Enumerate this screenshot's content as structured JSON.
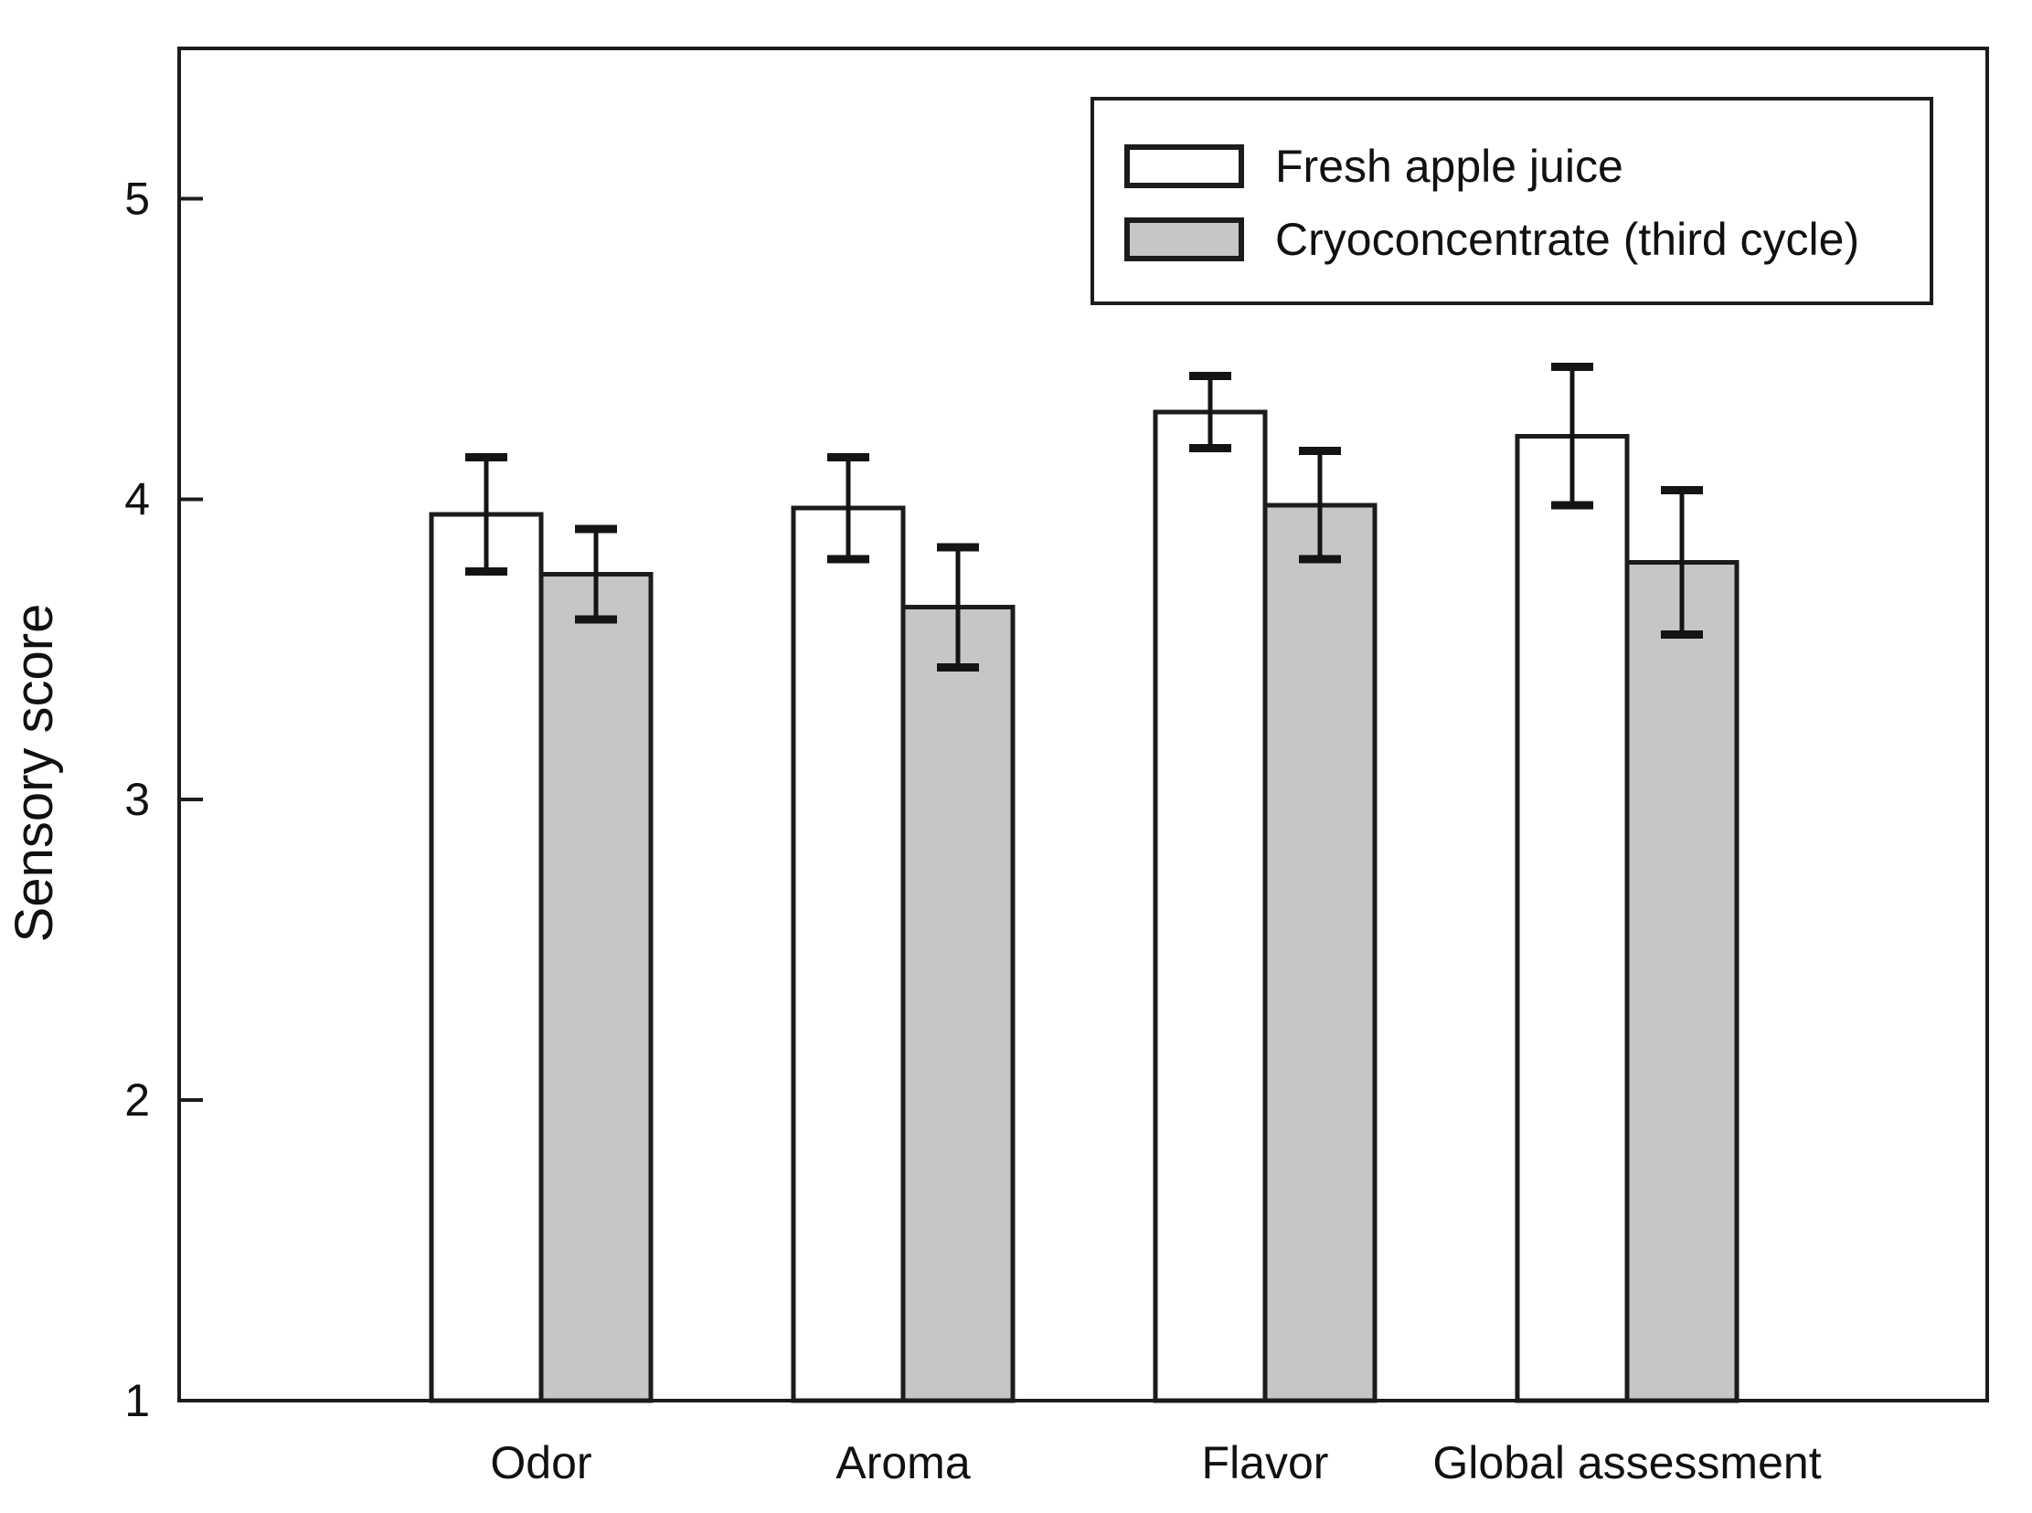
{
  "chart_data": {
    "type": "bar",
    "title": "",
    "ylabel": "Sensory score",
    "xlabel": "",
    "categories": [
      "Odor",
      "Aroma",
      "Flavor",
      "Global assessment"
    ],
    "series": [
      {
        "name": "Fresh apple juice",
        "fill": "#ffffff",
        "values": [
          3.95,
          3.97,
          4.29,
          4.21
        ],
        "errors": [
          0.19,
          0.17,
          0.12,
          0.23
        ]
      },
      {
        "name": "Cryoconcentrate (third cycle)",
        "fill": "#c6c6c6",
        "values": [
          3.75,
          3.64,
          3.98,
          3.79
        ],
        "errors": [
          0.15,
          0.2,
          0.18,
          0.24
        ]
      }
    ],
    "ylim": [
      1,
      5.5
    ],
    "yticks": [
      1,
      2,
      3,
      4,
      5
    ],
    "bar_baseline": 1,
    "error_bars": "symmetric with caps",
    "legend_position": "top-right",
    "grid": false,
    "colors": {
      "axis": "#1c1c1c",
      "bar_border": "#1c1c1c",
      "error_bar": "#141414",
      "fresh_fill": "#ffffff",
      "cryo_fill": "#c6c6c6",
      "background": "#ffffff"
    }
  }
}
